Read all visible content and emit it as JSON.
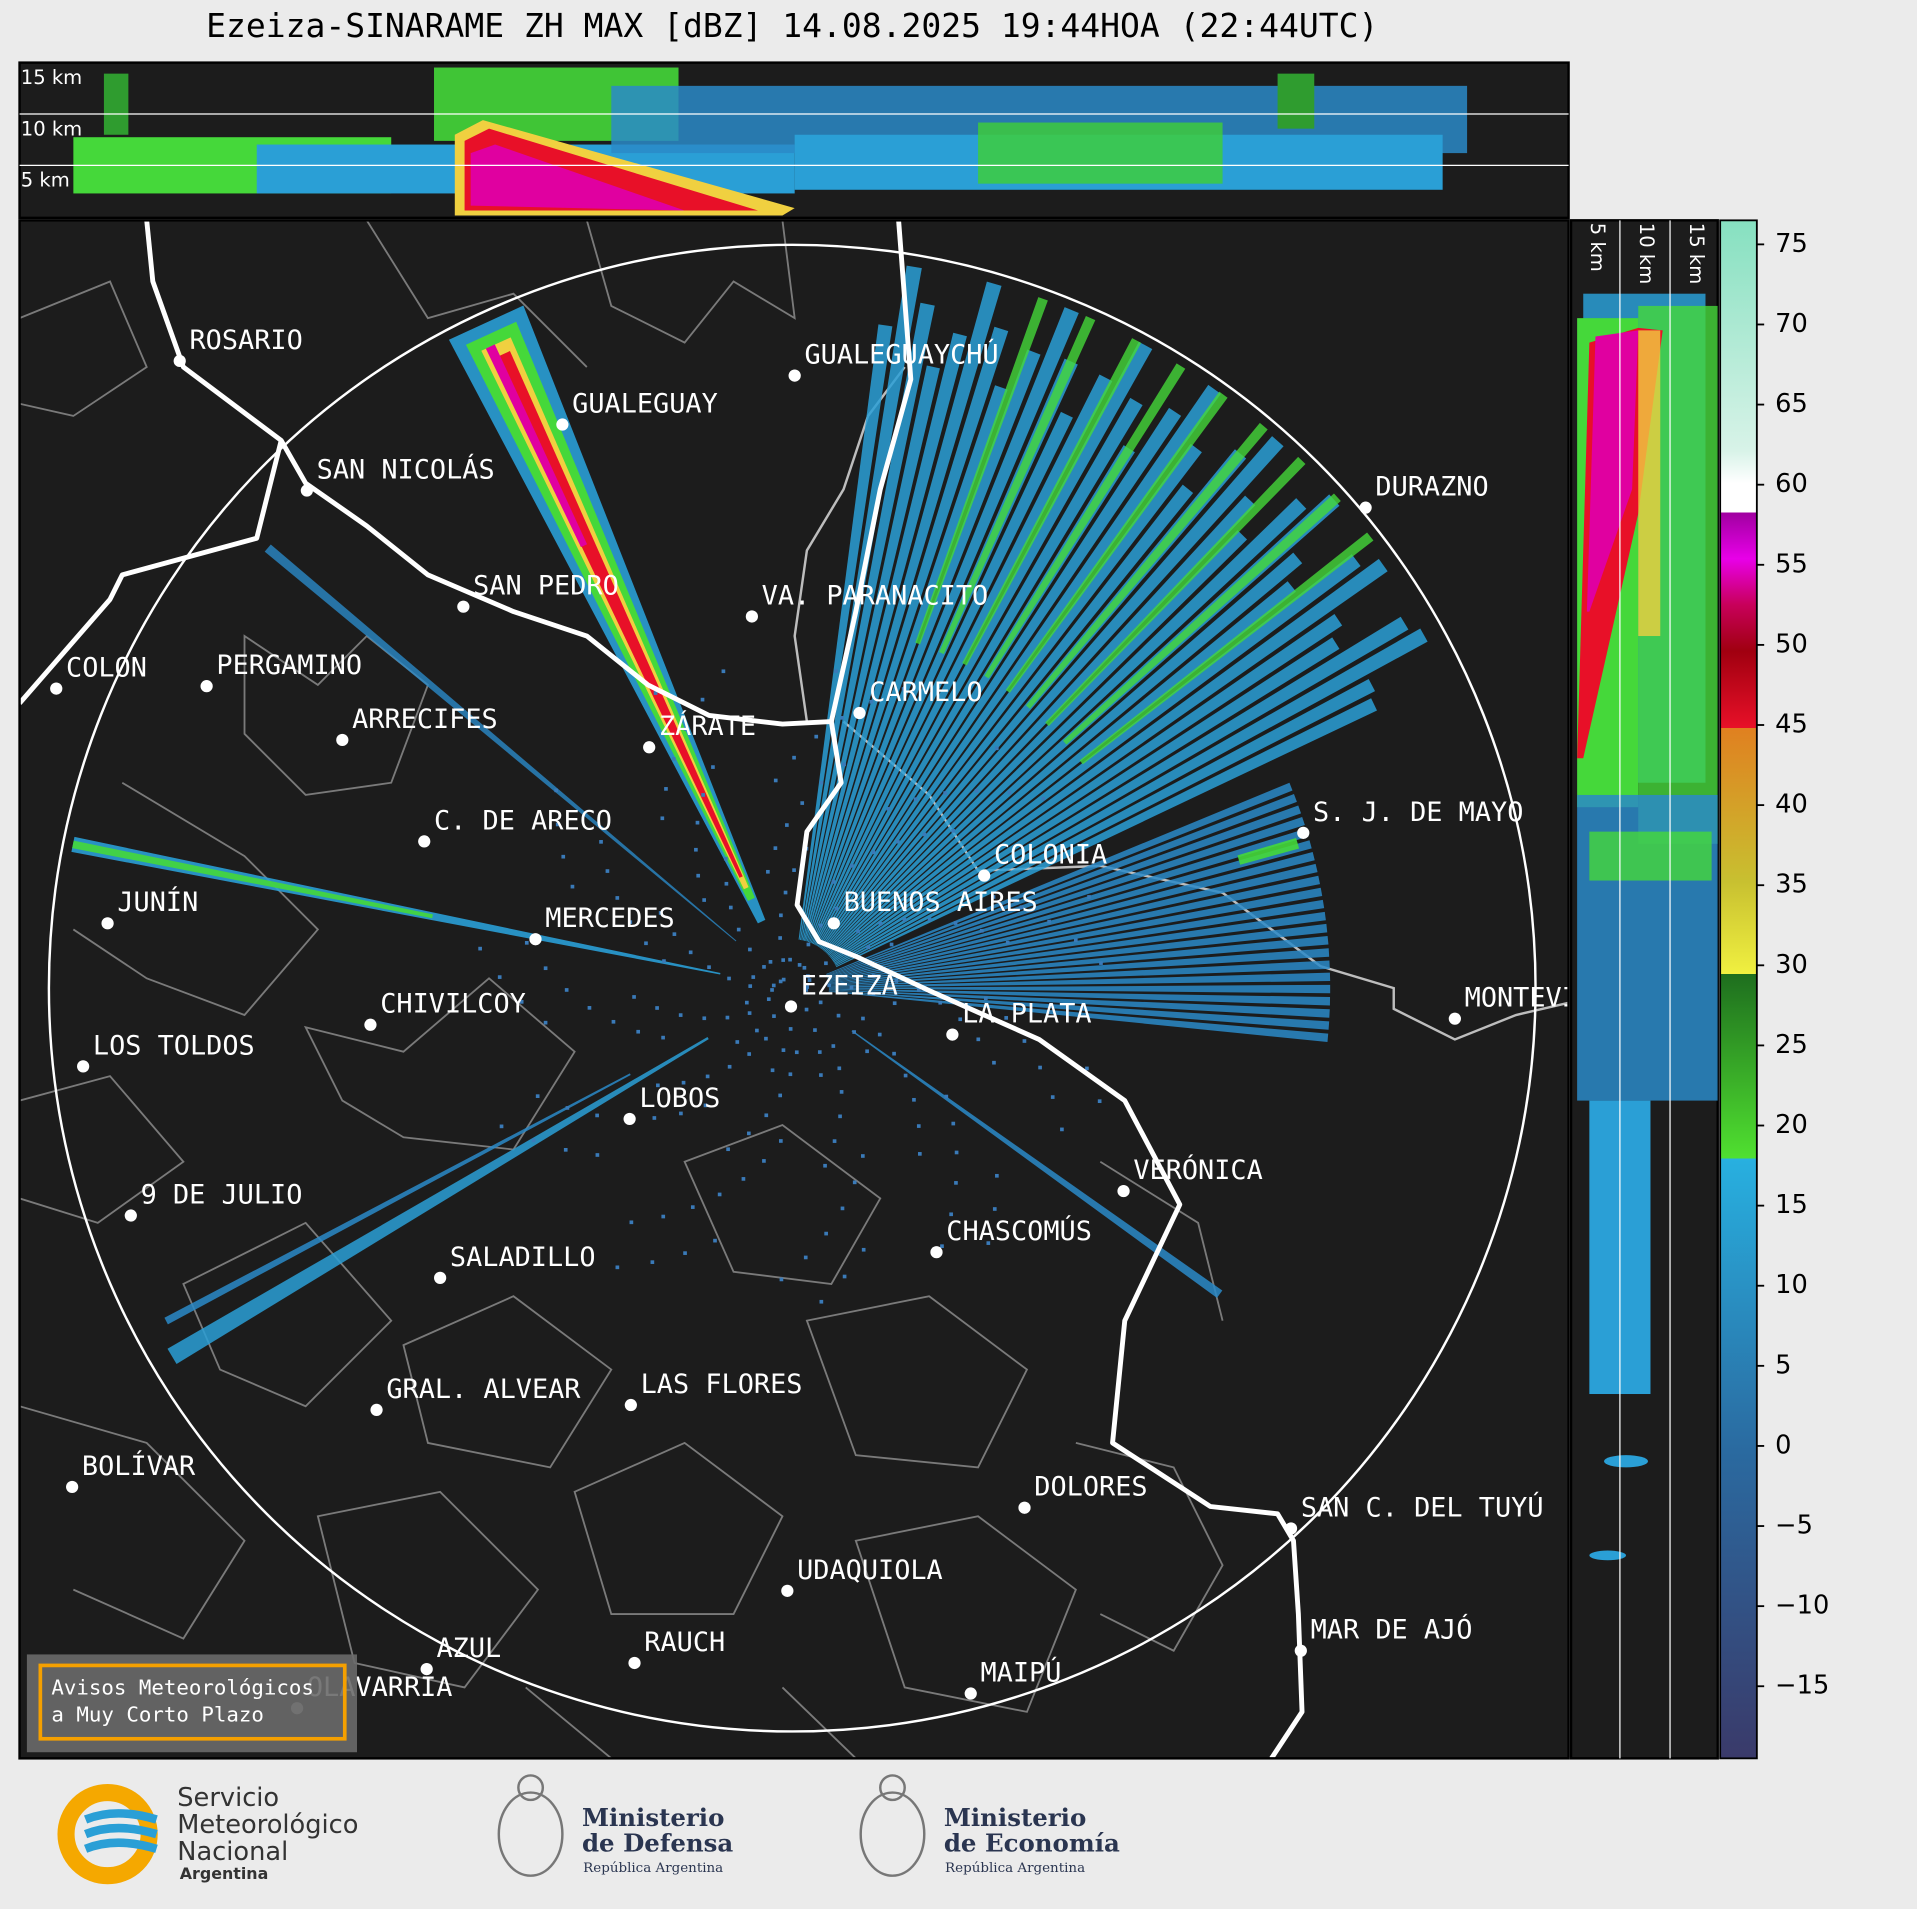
{
  "header": {
    "title": "Ezeiza-SINARAME ZH MAX [dBZ] 14.08.2025 19:44HOA (22:44UTC)"
  },
  "top_section": {
    "labels": [
      "15 km",
      "10 km",
      "5 km"
    ]
  },
  "side_section": {
    "labels": [
      "5 km",
      "10 km",
      "15 km"
    ]
  },
  "map": {
    "places": [
      "ROSARIO",
      "GUALEGUAYCHÚ",
      "GUALEGUAY",
      "SAN NICOLÁS",
      "DURAZNO",
      "SAN PEDRO",
      "VA. PARANACITO",
      "COLON",
      "PERGAMINO",
      "CARMELO",
      "ARRECIFES",
      "ZÁRATE",
      "S. J. DE MAYO",
      "C. DE ARECO",
      "COLONIA",
      "BUENOS AIRES",
      "JUNÍN",
      "MERCEDES",
      "EZEIZA",
      "MONTEVIDEO",
      "CHIVILCOY",
      "LA PLATA",
      "LOS TOLDOS",
      "LOBOS",
      "VERÓNICA",
      "9 DE JULIO",
      "CHASCOMÚS",
      "SALADILLO",
      "GRAL. ALVEAR",
      "LAS FLORES",
      "BOLÍVAR",
      "DOLORES",
      "SAN C. DEL TUYÚ",
      "UDAQUIOLA",
      "MAR DE AJÓ",
      "RAUCH",
      "AZUL",
      "MAIPÚ",
      "OLAVARRÍA"
    ]
  },
  "colorbar": {
    "range": [
      -19.5,
      76.5
    ],
    "ticks": [
      75,
      70,
      65,
      60,
      55,
      50,
      45,
      40,
      35,
      30,
      25,
      20,
      15,
      10,
      5,
      0,
      {
        "value": -5,
        "label": "−5"
      },
      {
        "value": -10,
        "label": "−10"
      },
      {
        "value": -15,
        "label": "−15"
      }
    ]
  },
  "notice": {
    "lines": [
      "Avisos Meteorológicos",
      "a Muy Corto Plazo"
    ]
  },
  "footer": {
    "logos": [
      {
        "lines": [
          "Servicio",
          "Meteorológico",
          "Nacional"
        ],
        "country": "Argentina"
      },
      {
        "lines": [
          "Ministerio",
          "de Defensa"
        ],
        "country": "República Argentina"
      },
      {
        "lines": [
          "Ministerio",
          "de Economía"
        ],
        "country": "República Argentina"
      }
    ]
  }
}
